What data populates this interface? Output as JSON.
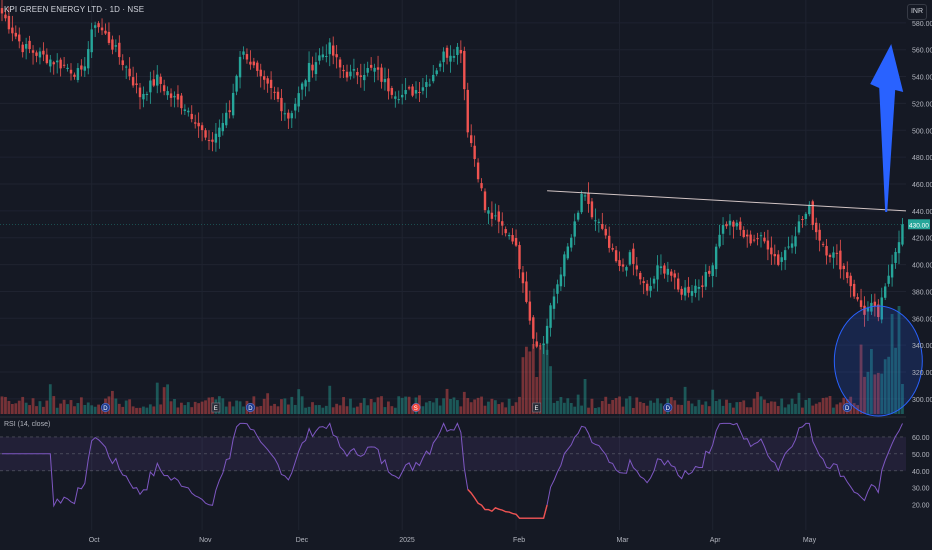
{
  "header": {
    "title": "KPI GREEN ENERGY LTD · 1D · NSE",
    "currency_button": "INR"
  },
  "rsi": {
    "label": "RSI (14, close)",
    "ticks": [
      20,
      30,
      40,
      50,
      60
    ],
    "upper": 60,
    "lower": 40
  },
  "colors": {
    "up": "#26a69a",
    "down": "#ef5350",
    "rsi_line": "#7e57c2",
    "arrow": "#2962ff",
    "trendline": "#d1c4c4"
  },
  "chart_data": {
    "type": "candlestick",
    "x_labels": [
      "Oct",
      "Nov",
      "Dec",
      "2025",
      "Feb",
      "Mar",
      "Apr",
      "May"
    ],
    "y_ticks": [
      300,
      320,
      340,
      360,
      380,
      400,
      420,
      440,
      460,
      480,
      500,
      520,
      540,
      560,
      580
    ],
    "ylim": [
      288,
      597
    ],
    "last_price": "430.00",
    "resistance_line": {
      "from": 455,
      "to": 440
    },
    "event_markers": [
      {
        "label": "D",
        "type": "dividend"
      },
      {
        "label": "E",
        "type": "earnings"
      },
      {
        "label": "D",
        "type": "dividend"
      },
      {
        "label": "S",
        "type": "split"
      },
      {
        "label": "E",
        "type": "earnings"
      },
      {
        "label": "D",
        "type": "dividend"
      },
      {
        "label": "D",
        "type": "dividend"
      }
    ],
    "keys": [
      [
        0,
        587
      ],
      [
        6,
        562
      ],
      [
        12,
        555
      ],
      [
        18,
        548
      ],
      [
        23,
        541
      ],
      [
        27,
        581
      ],
      [
        31,
        567
      ],
      [
        36,
        547
      ],
      [
        40,
        526
      ],
      [
        45,
        538
      ],
      [
        49,
        525
      ],
      [
        53,
        518
      ],
      [
        56,
        509
      ],
      [
        60,
        488
      ],
      [
        62,
        498
      ],
      [
        66,
        514
      ],
      [
        69,
        557
      ],
      [
        71,
        556
      ],
      [
        75,
        536
      ],
      [
        79,
        527
      ],
      [
        83,
        510
      ],
      [
        86,
        526
      ],
      [
        89,
        546
      ],
      [
        92,
        555
      ],
      [
        95,
        561
      ],
      [
        98,
        546
      ],
      [
        101,
        541
      ],
      [
        104,
        544
      ],
      [
        108,
        545
      ],
      [
        112,
        532
      ],
      [
        116,
        526
      ],
      [
        120,
        530
      ],
      [
        124,
        538
      ],
      [
        128,
        556
      ],
      [
        132,
        561
      ],
      [
        133,
        561
      ],
      [
        135,
        502
      ],
      [
        138,
        468
      ],
      [
        140,
        441
      ],
      [
        144,
        430
      ],
      [
        148,
        421
      ],
      [
        151,
        390
      ],
      [
        153,
        360
      ],
      [
        155,
        338
      ],
      [
        157,
        342
      ],
      [
        159,
        366
      ],
      [
        162,
        396
      ],
      [
        165,
        420
      ],
      [
        167,
        437
      ],
      [
        168,
        453
      ],
      [
        171,
        436
      ],
      [
        173,
        430
      ],
      [
        176,
        412
      ],
      [
        179,
        396
      ],
      [
        182,
        405
      ],
      [
        185,
        390
      ],
      [
        187,
        378
      ],
      [
        190,
        396
      ],
      [
        193,
        398
      ],
      [
        196,
        380
      ],
      [
        199,
        382
      ],
      [
        202,
        385
      ],
      [
        205,
        393
      ],
      [
        208,
        425
      ],
      [
        210,
        431
      ],
      [
        212,
        430
      ],
      [
        214,
        425
      ],
      [
        216,
        418
      ],
      [
        219,
        420
      ],
      [
        222,
        415
      ],
      [
        225,
        402
      ],
      [
        228,
        415
      ],
      [
        231,
        430
      ],
      [
        234,
        441
      ],
      [
        236,
        425
      ],
      [
        239,
        411
      ],
      [
        242,
        405
      ],
      [
        245,
        392
      ],
      [
        248,
        372
      ],
      [
        250,
        365
      ],
      [
        252,
        368
      ],
      [
        254,
        362
      ],
      [
        256,
        381
      ],
      [
        258,
        404
      ],
      [
        260,
        420
      ],
      [
        261,
        430
      ]
    ]
  }
}
